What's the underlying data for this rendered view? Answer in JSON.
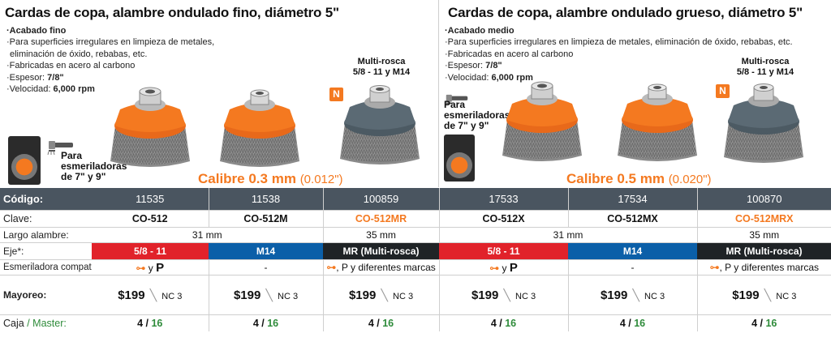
{
  "left": {
    "title": "Cardas de copa, alambre ondulado fino, diámetro 5\"",
    "bullets": [
      {
        "text": "Acabado fino",
        "bold": true
      },
      {
        "text": "Para superficies irregulares en limpieza de metales,"
      },
      {
        "text": "eliminación de óxido, rebabas, etc.",
        "indent": true
      },
      {
        "text": "Fabricadas en acero al carbono"
      },
      {
        "text": "Espesor: ",
        "value": "7/8\""
      },
      {
        "text": "Velocidad: ",
        "value": "6,000 rpm"
      }
    ],
    "multi_rosca": "Multi-rosca",
    "multi_rosca_size": "5/8 - 11 y M14",
    "badge": "N",
    "grinder_label": "Para\nesmeriladoras\nde 7\" y 9\"",
    "calibre": "Calibre 0.3 mm",
    "calibre_paren": "(0.012\")"
  },
  "right": {
    "title": "Cardas de copa, alambre ondulado grueso, diámetro 5\"",
    "bullets": [
      {
        "text": "Acabado medio",
        "bold": true
      },
      {
        "text": "Para superficies irregulares en limpieza de metales, eliminación de óxido, rebabas, etc."
      },
      {
        "text": "Fabricadas en acero al carbono"
      },
      {
        "text": "Espesor: ",
        "value": "7/8\""
      },
      {
        "text": "Velocidad: ",
        "value": "6,000 rpm"
      }
    ],
    "multi_rosca": "Multi-rosca",
    "multi_rosca_size": "5/8 - 11 y M14",
    "badge": "N",
    "grinder_label": "Para\nesmeriladoras\nde 7\" y 9\"",
    "calibre": "Calibre 0.5 mm",
    "calibre_paren": "(0.020\")"
  },
  "colors": {
    "orange": "#f47920",
    "header": "#4a5560",
    "red": "#e1222a",
    "blue": "#0b5fa8",
    "dark": "#1f2326",
    "green": "#2e8b3a"
  },
  "table": {
    "labels": {
      "codigo": "Código:",
      "clave": "Clave:",
      "largo": "Largo alambre:",
      "eje": "Eje*:",
      "esm": "Esmeriladora compatible:",
      "mayoreo": "Mayoreo:",
      "caja": "Caja",
      "caja_sep": "/",
      "master": "Master:"
    },
    "codes": [
      "11535",
      "11538",
      "100859",
      "17533",
      "17534",
      "100870"
    ],
    "claves": [
      "CO-512",
      "CO-512M",
      "CO-512MR",
      "CO-512X",
      "CO-512MX",
      "CO-512MRX"
    ],
    "largo": [
      "31 mm",
      "35 mm",
      "31 mm",
      "35 mm"
    ],
    "eje": [
      "5/8 - 11",
      "M14",
      "MR (Multi-rosca)",
      "5/8 - 11",
      "M14",
      "MR (Multi-rosca)"
    ],
    "esm": {
      "y": "y",
      "dash": "-",
      "p": "P",
      "other": ", P y diferentes marcas",
      "icon_o": "orange-grinder-icon"
    },
    "price": "$199",
    "nc": "NC 3",
    "caja": "4",
    "master": "16"
  }
}
